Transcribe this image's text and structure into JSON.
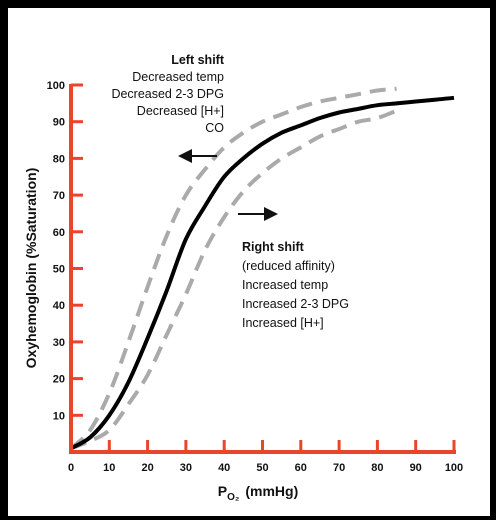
{
  "chart_data": {
    "type": "line",
    "xlabel_main": "P",
    "xlabel_sub": "O₂",
    "xlabel_unit": "(mmHg)",
    "ylabel": "Oxyhemoglobin (%Saturation)",
    "xlim": [
      0,
      100
    ],
    "ylim": [
      0,
      100
    ],
    "x_ticks": [
      0,
      10,
      20,
      30,
      40,
      50,
      60,
      70,
      80,
      90,
      100
    ],
    "y_ticks": [
      10,
      20,
      30,
      40,
      50,
      60,
      70,
      80,
      90,
      100
    ],
    "axis_color": "#e8452a",
    "series": [
      {
        "style": "solid",
        "color": "#000000",
        "x": [
          0,
          5,
          10,
          15,
          20,
          25,
          30,
          35,
          40,
          45,
          50,
          55,
          60,
          65,
          70,
          75,
          80,
          85,
          90,
          95,
          100
        ],
        "y": [
          1,
          4,
          10,
          19,
          31,
          44,
          58,
          67,
          75,
          80,
          84,
          87,
          89,
          91,
          92.5,
          93.5,
          94.5,
          95,
          95.5,
          96,
          96.5
        ]
      },
      {
        "style": "dashed",
        "color": "#aaaaaa",
        "x": [
          0,
          5,
          10,
          15,
          20,
          25,
          30,
          35,
          40,
          45,
          50,
          55,
          60,
          65,
          70,
          75,
          80,
          85
        ],
        "y": [
          1,
          6,
          16,
          30,
          45,
          59,
          70,
          77,
          83,
          87,
          90,
          92,
          94,
          95.5,
          96.5,
          97.5,
          98.5,
          99
        ]
      },
      {
        "style": "dashed",
        "color": "#aaaaaa",
        "x": [
          0,
          5,
          10,
          15,
          20,
          25,
          30,
          35,
          40,
          45,
          50,
          55,
          60,
          65,
          70,
          75,
          80,
          85
        ],
        "y": [
          1,
          3,
          6,
          13,
          21,
          32,
          43,
          55,
          64,
          71,
          76,
          80,
          83,
          86,
          88,
          90,
          91,
          93
        ]
      }
    ],
    "annotations": {
      "left": {
        "heading": "Left shift",
        "lines": [
          "Decreased temp",
          "Decreased 2-3 DPG",
          "Decreased [H+]",
          "CO"
        ]
      },
      "right": {
        "heading": "Right shift",
        "lines": [
          "(reduced affinity)",
          "Increased temp",
          "Increased 2-3 DPG",
          "Increased [H+]"
        ]
      }
    }
  }
}
